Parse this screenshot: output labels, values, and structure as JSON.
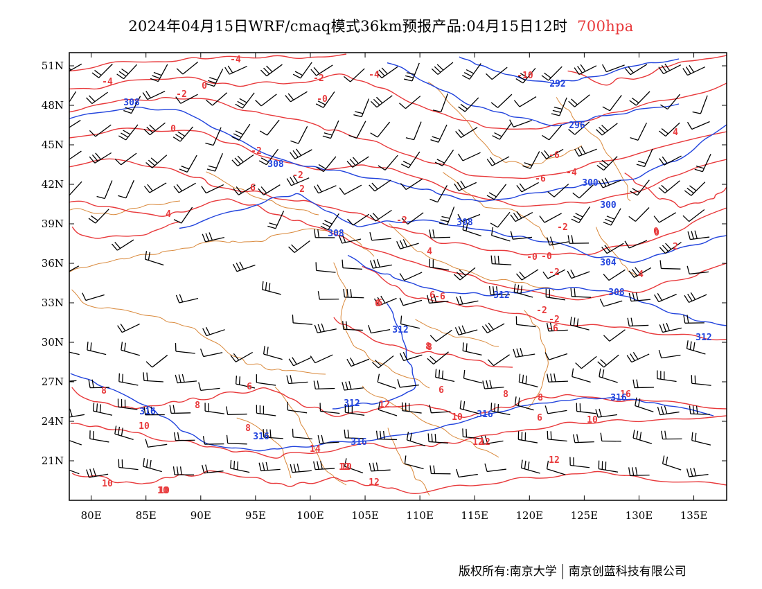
{
  "header": {
    "title": "2024年04月15日WRF/cmaq模式36km预报产品:04月15日12时",
    "level": "700hpa"
  },
  "footer": {
    "copyright": "版权所有:南京大学",
    "company": "南京创蓝科技有限公司"
  },
  "colors": {
    "temperature": "#e8393b",
    "geopotential": "#2244dd",
    "border": "#d9883a",
    "wind": "#000000"
  },
  "map": {
    "lon_range": [
      78,
      138
    ],
    "lat_range": [
      18,
      52
    ],
    "x_ticks": [
      "80E",
      "85E",
      "90E",
      "95E",
      "100E",
      "105E",
      "110E",
      "115E",
      "120E",
      "125E",
      "130E",
      "135E"
    ],
    "y_ticks": [
      "51N",
      "48N",
      "45N",
      "42N",
      "39N",
      "36N",
      "33N",
      "30N",
      "27N",
      "24N",
      "21N"
    ],
    "temperature_labels": [
      "-4",
      "-4",
      "-4",
      "-2",
      "0",
      "-2",
      "-0",
      "0",
      "-2",
      "-2",
      "-10",
      "-6",
      "-6",
      "-4",
      "-0",
      "6",
      "4",
      "2",
      "4",
      "-2",
      "-2",
      "0",
      "-0",
      "-2",
      "4",
      "4",
      "2",
      "-2",
      "-6",
      "6",
      "8",
      "-6",
      "-2",
      "6",
      "8",
      "8",
      "8",
      "6",
      "8",
      "6",
      "8",
      "10",
      "10",
      "10",
      "14",
      "12",
      "12",
      "12",
      "12",
      "10",
      "10",
      "10",
      "12",
      "12",
      "8",
      "6",
      "10",
      "16",
      "0",
      "6"
    ],
    "geopotential_labels": [
      "292",
      "296",
      "300",
      "300",
      "304",
      "308",
      "308",
      "308",
      "308",
      "308",
      "312",
      "312",
      "312",
      "312",
      "316",
      "316",
      "316",
      "316",
      "316"
    ],
    "wind_barbs": "grid"
  }
}
